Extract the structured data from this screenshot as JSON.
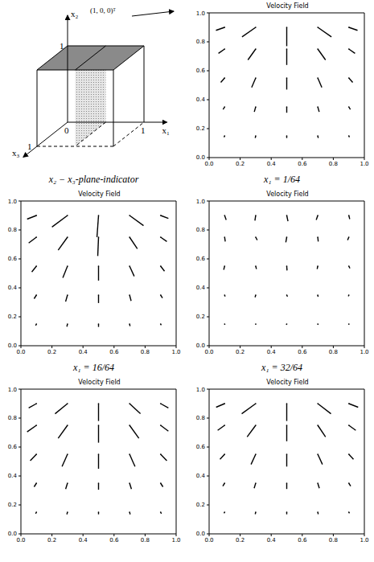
{
  "diagram": {
    "caption": "x₂ − x₃-plane-indicator",
    "x1_label": "x₁",
    "x2_label": "x₂",
    "x3_label": "x₃",
    "direction_label": "(1, 0, 0)ᵀ",
    "origin_label": "0",
    "x1_end_label": "1",
    "x2_end_label": "1",
    "x3_end_label": "1"
  },
  "chart_data": [
    {
      "type": "quiver",
      "title": "Velocity Field",
      "caption": "x₁ = 1/64",
      "color": "#000000",
      "xlim": [
        0,
        1
      ],
      "ylim": [
        0,
        1
      ],
      "xticks": [
        {
          "value": 0,
          "label": "0.0"
        },
        {
          "value": 0.2,
          "label": "0.2"
        },
        {
          "value": 0.4,
          "label": "0.4"
        },
        {
          "value": 0.6,
          "label": "0.6"
        },
        {
          "value": 0.8,
          "label": "0.8"
        },
        {
          "value": 1,
          "label": "1.0"
        }
      ],
      "yticks": [
        {
          "value": 0,
          "label": "0.0"
        },
        {
          "value": 0.2,
          "label": "0.2"
        },
        {
          "value": 0.4,
          "label": "0.4"
        },
        {
          "value": 0.6,
          "label": "0.6"
        },
        {
          "value": 0.8,
          "label": "0.8"
        },
        {
          "value": 1,
          "label": "1.0"
        }
      ],
      "x": [
        0.1,
        0.3,
        0.5,
        0.7,
        0.9,
        0.1,
        0.3,
        0.5,
        0.7,
        0.9,
        0.1,
        0.3,
        0.5,
        0.7,
        0.9,
        0.1,
        0.3,
        0.5,
        0.7,
        0.9,
        0.1,
        0.3,
        0.5,
        0.7,
        0.9
      ],
      "y": [
        0.9,
        0.9,
        0.9,
        0.9,
        0.9,
        0.75,
        0.75,
        0.75,
        0.75,
        0.75,
        0.55,
        0.55,
        0.55,
        0.55,
        0.55,
        0.35,
        0.35,
        0.35,
        0.35,
        0.35,
        0.15,
        0.15,
        0.15,
        0.15,
        0.15
      ],
      "u": [
        -0.056,
        -0.088,
        0,
        0.088,
        0.056,
        -0.04,
        -0.05,
        0,
        0.05,
        0.04,
        -0.025,
        -0.026,
        0,
        0.026,
        0.025,
        -0.01,
        -0.009,
        0,
        0.009,
        0.01,
        -0.004,
        -0.003,
        0,
        0.003,
        0.004
      ],
      "v": [
        -0.021,
        -0.066,
        -0.13,
        -0.066,
        -0.021,
        -0.03,
        -0.075,
        -0.11,
        -0.075,
        -0.03,
        -0.031,
        -0.065,
        -0.08,
        -0.065,
        -0.031,
        -0.017,
        -0.034,
        -0.04,
        -0.034,
        -0.017,
        -0.009,
        -0.015,
        -0.015,
        -0.015,
        -0.009
      ]
    },
    {
      "type": "quiver",
      "title": "Velocity Field",
      "caption": "x₁ = 16/64",
      "color": "#000000",
      "xlim": [
        0,
        1
      ],
      "ylim": [
        0,
        1
      ],
      "xticks": [
        {
          "value": 0,
          "label": "0.0"
        },
        {
          "value": 0.2,
          "label": "0.2"
        },
        {
          "value": 0.4,
          "label": "0.4"
        },
        {
          "value": 0.6,
          "label": "0.6"
        },
        {
          "value": 0.8,
          "label": "0.8"
        },
        {
          "value": 1,
          "label": "1.0"
        }
      ],
      "yticks": [
        {
          "value": 0,
          "label": "0.0"
        },
        {
          "value": 0.2,
          "label": "0.2"
        },
        {
          "value": 0.4,
          "label": "0.4"
        },
        {
          "value": 0.6,
          "label": "0.6"
        },
        {
          "value": 0.8,
          "label": "0.8"
        },
        {
          "value": 1,
          "label": "1.0"
        }
      ],
      "x": [
        0.1,
        0.3,
        0.5,
        0.7,
        0.9,
        0.1,
        0.3,
        0.5,
        0.7,
        0.9,
        0.1,
        0.3,
        0.5,
        0.7,
        0.9,
        0.1,
        0.3,
        0.5,
        0.7,
        0.9,
        0.1,
        0.3,
        0.5,
        0.7,
        0.9
      ],
      "y": [
        0.9,
        0.9,
        0.9,
        0.9,
        0.9,
        0.75,
        0.75,
        0.75,
        0.75,
        0.75,
        0.55,
        0.55,
        0.55,
        0.55,
        0.55,
        0.35,
        0.35,
        0.35,
        0.35,
        0.35,
        0.15,
        0.15,
        0.15,
        0.15,
        0.15
      ],
      "u": [
        -0.06,
        -0.1,
        -0.01,
        0.09,
        0.05,
        -0.05,
        -0.06,
        -0.005,
        0.05,
        0.04,
        -0.03,
        -0.03,
        0,
        0.03,
        0.025,
        -0.015,
        -0.012,
        0,
        0.01,
        0.012,
        -0.005,
        -0.004,
        0,
        0.003,
        0.004
      ],
      "v": [
        -0.025,
        -0.08,
        -0.15,
        -0.07,
        -0.02,
        -0.04,
        -0.09,
        -0.13,
        -0.08,
        -0.03,
        -0.04,
        -0.08,
        -0.1,
        -0.07,
        -0.035,
        -0.025,
        -0.045,
        -0.055,
        -0.04,
        -0.02,
        -0.01,
        -0.018,
        -0.02,
        -0.015,
        -0.008
      ]
    },
    {
      "type": "quiver",
      "title": "Velocity Field",
      "caption": "x₁ = 32/64",
      "color": "#000000",
      "xlim": [
        0,
        1
      ],
      "ylim": [
        0,
        1
      ],
      "xticks": [
        {
          "value": 0,
          "label": "0.0"
        },
        {
          "value": 0.2,
          "label": "0.2"
        },
        {
          "value": 0.4,
          "label": "0.4"
        },
        {
          "value": 0.6,
          "label": "0.6"
        },
        {
          "value": 0.8,
          "label": "0.8"
        },
        {
          "value": 1,
          "label": "1.0"
        }
      ],
      "yticks": [
        {
          "value": 0,
          "label": "0.0"
        },
        {
          "value": 0.2,
          "label": "0.2"
        },
        {
          "value": 0.4,
          "label": "0.4"
        },
        {
          "value": 0.6,
          "label": "0.6"
        },
        {
          "value": 0.8,
          "label": "0.8"
        },
        {
          "value": 1,
          "label": "1.0"
        }
      ],
      "x": [
        0.1,
        0.3,
        0.5,
        0.7,
        0.9,
        0.1,
        0.3,
        0.5,
        0.7,
        0.9,
        0.1,
        0.3,
        0.5,
        0.7,
        0.9,
        0.1,
        0.3,
        0.5,
        0.7,
        0.9,
        0.1,
        0.3,
        0.5,
        0.7,
        0.9
      ],
      "y": [
        0.9,
        0.9,
        0.9,
        0.9,
        0.9,
        0.75,
        0.75,
        0.75,
        0.75,
        0.75,
        0.55,
        0.55,
        0.55,
        0.55,
        0.55,
        0.35,
        0.35,
        0.35,
        0.35,
        0.35,
        0.15,
        0.15,
        0.15,
        0.15,
        0.15
      ],
      "u": [
        0.01,
        -0.005,
        0.008,
        -0.01,
        0.006,
        0.004,
        0.01,
        -0.006,
        0.003,
        -0.008,
        -0.006,
        0.005,
        0.002,
        -0.004,
        0.007,
        0.003,
        -0.004,
        0.005,
        0.002,
        -0.003,
        0.002,
        0.001,
        -0.002,
        0.003,
        0.001
      ],
      "v": [
        -0.03,
        -0.035,
        -0.04,
        -0.03,
        -0.025,
        -0.03,
        -0.02,
        -0.035,
        -0.03,
        -0.02,
        -0.025,
        -0.02,
        -0.03,
        -0.02,
        -0.015,
        -0.01,
        -0.015,
        -0.01,
        -0.012,
        -0.008,
        -0.005,
        -0.004,
        -0.006,
        -0.005,
        -0.004
      ]
    },
    {
      "type": "quiver",
      "title": "Velocity Field",
      "color": "#000000",
      "xlim": [
        0,
        1
      ],
      "ylim": [
        0,
        1
      ],
      "xticks": [
        {
          "value": 0,
          "label": "0.0"
        },
        {
          "value": 0.2,
          "label": "0.2"
        },
        {
          "value": 0.4,
          "label": "0.4"
        },
        {
          "value": 0.6,
          "label": "0.6"
        },
        {
          "value": 0.8,
          "label": "0.8"
        },
        {
          "value": 1,
          "label": "1.0"
        }
      ],
      "yticks": [
        {
          "value": 0,
          "label": "0.0"
        },
        {
          "value": 0.2,
          "label": "0.2"
        },
        {
          "value": 0.4,
          "label": "0.4"
        },
        {
          "value": 0.6,
          "label": "0.6"
        },
        {
          "value": 0.8,
          "label": "0.8"
        },
        {
          "value": 1,
          "label": "1.0"
        }
      ],
      "x": [
        0.1,
        0.3,
        0.5,
        0.7,
        0.9,
        0.1,
        0.3,
        0.5,
        0.7,
        0.9,
        0.1,
        0.3,
        0.5,
        0.7,
        0.9,
        0.1,
        0.3,
        0.5,
        0.7,
        0.9,
        0.1,
        0.3,
        0.5,
        0.7,
        0.9
      ],
      "y": [
        0.9,
        0.9,
        0.9,
        0.9,
        0.9,
        0.75,
        0.75,
        0.75,
        0.75,
        0.75,
        0.55,
        0.55,
        0.55,
        0.55,
        0.55,
        0.35,
        0.35,
        0.35,
        0.35,
        0.35,
        0.15,
        0.15,
        0.15,
        0.15,
        0.15
      ],
      "u": [
        -0.05,
        -0.08,
        0,
        0.07,
        0.05,
        -0.06,
        -0.06,
        0,
        0.06,
        0.05,
        -0.04,
        -0.035,
        0,
        0.035,
        0.04,
        -0.015,
        -0.012,
        0,
        0.012,
        0.015,
        -0.005,
        -0.004,
        0,
        0.004,
        0.005
      ],
      "v": [
        -0.03,
        -0.07,
        -0.12,
        -0.07,
        -0.03,
        -0.045,
        -0.09,
        -0.12,
        -0.09,
        -0.04,
        -0.045,
        -0.085,
        -0.1,
        -0.085,
        -0.045,
        -0.025,
        -0.04,
        -0.045,
        -0.04,
        -0.025,
        -0.01,
        -0.015,
        -0.015,
        -0.015,
        -0.01
      ]
    },
    {
      "type": "quiver",
      "title": "Velocity Field",
      "color": "#000000",
      "xlim": [
        0,
        1
      ],
      "ylim": [
        0,
        1
      ],
      "xticks": [
        {
          "value": 0,
          "label": "0.0"
        },
        {
          "value": 0.2,
          "label": "0.2"
        },
        {
          "value": 0.4,
          "label": "0.4"
        },
        {
          "value": 0.6,
          "label": "0.6"
        },
        {
          "value": 0.8,
          "label": "0.8"
        },
        {
          "value": 1,
          "label": "1.0"
        }
      ],
      "yticks": [
        {
          "value": 0,
          "label": "0.0"
        },
        {
          "value": 0.2,
          "label": "0.2"
        },
        {
          "value": 0.4,
          "label": "0.4"
        },
        {
          "value": 0.6,
          "label": "0.6"
        },
        {
          "value": 0.8,
          "label": "0.8"
        },
        {
          "value": 1,
          "label": "1.0"
        }
      ],
      "x": [
        0.1,
        0.3,
        0.5,
        0.7,
        0.9,
        0.1,
        0.3,
        0.5,
        0.7,
        0.9,
        0.1,
        0.3,
        0.5,
        0.7,
        0.9,
        0.1,
        0.3,
        0.5,
        0.7,
        0.9,
        0.1,
        0.3,
        0.5,
        0.7,
        0.9
      ],
      "y": [
        0.9,
        0.9,
        0.9,
        0.9,
        0.9,
        0.75,
        0.75,
        0.75,
        0.75,
        0.75,
        0.55,
        0.55,
        0.55,
        0.55,
        0.55,
        0.35,
        0.35,
        0.35,
        0.35,
        0.35,
        0.15,
        0.15,
        0.15,
        0.15,
        0.15
      ],
      "u": [
        -0.055,
        -0.09,
        0,
        0.085,
        0.06,
        -0.045,
        -0.055,
        0,
        0.05,
        0.045,
        -0.03,
        -0.03,
        0,
        0.03,
        0.03,
        -0.012,
        -0.01,
        0,
        0.01,
        0.012,
        -0.004,
        -0.003,
        0,
        0.003,
        0.004
      ],
      "v": [
        -0.025,
        -0.07,
        -0.12,
        -0.07,
        -0.025,
        -0.035,
        -0.08,
        -0.11,
        -0.08,
        -0.035,
        -0.035,
        -0.07,
        -0.085,
        -0.07,
        -0.035,
        -0.02,
        -0.035,
        -0.04,
        -0.035,
        -0.02,
        -0.008,
        -0.014,
        -0.015,
        -0.014,
        -0.008
      ]
    }
  ]
}
